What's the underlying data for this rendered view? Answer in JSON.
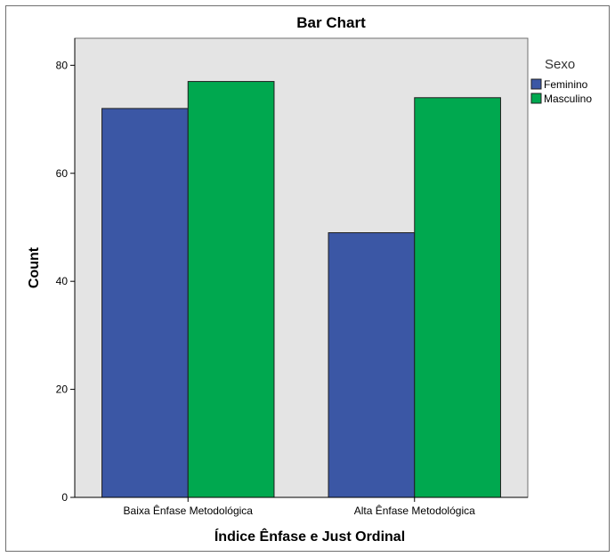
{
  "chart_data": {
    "type": "bar",
    "title": "Bar Chart",
    "xlabel": "Índice Ênfase e Just Ordinal",
    "ylabel": "Count",
    "categories": [
      "Baixa Ênfase Metodológica",
      "Alta Ênfase Metodológica"
    ],
    "series": [
      {
        "name": "Feminino",
        "values": [
          72,
          49
        ],
        "color": "#3b57a5"
      },
      {
        "name": "Masculino",
        "values": [
          77,
          74
        ],
        "color": "#00a84f"
      }
    ],
    "ylim": [
      0,
      85
    ],
    "yticks": [
      0,
      20,
      40,
      60,
      80
    ],
    "legend": {
      "title": "Sexo",
      "position": "top-right"
    },
    "grid": false,
    "colors": {
      "plot_background": "#e4e4e4",
      "bar_outline": "#1f1f1f",
      "axis": "#000000"
    }
  }
}
